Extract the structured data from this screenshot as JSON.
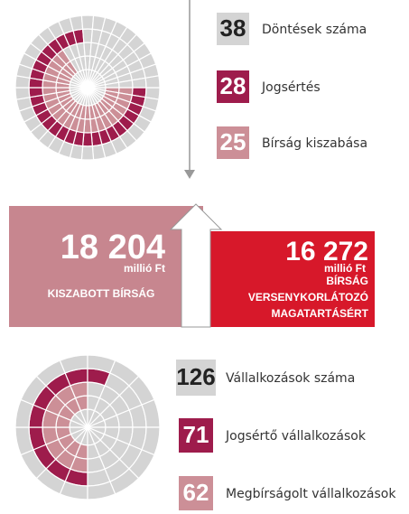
{
  "top_stats": [
    {
      "value": "38",
      "label": "Döntések száma"
    },
    {
      "value": "28",
      "label": "Jogsértés"
    },
    {
      "value": "25",
      "label": "Bírság kiszabása"
    }
  ],
  "fines": {
    "imposed": {
      "amount": "18 204",
      "unit": "millió Ft",
      "label": "KISZABOTT BÍRSÁG"
    },
    "cartel": {
      "amount": "16 272",
      "unit": "millió Ft",
      "label_lines": [
        "BÍRSÁG",
        "VERSENYKORLÁTOZÓ",
        "MAGATARTÁSÉRT"
      ]
    }
  },
  "bottom_stats": [
    {
      "value": "126",
      "label": "Vállalkozások száma"
    },
    {
      "value": "71",
      "label": "Jogsértő vállalkozások"
    },
    {
      "value": "62",
      "label": "Megbírságolt vállalkozások"
    }
  ]
}
